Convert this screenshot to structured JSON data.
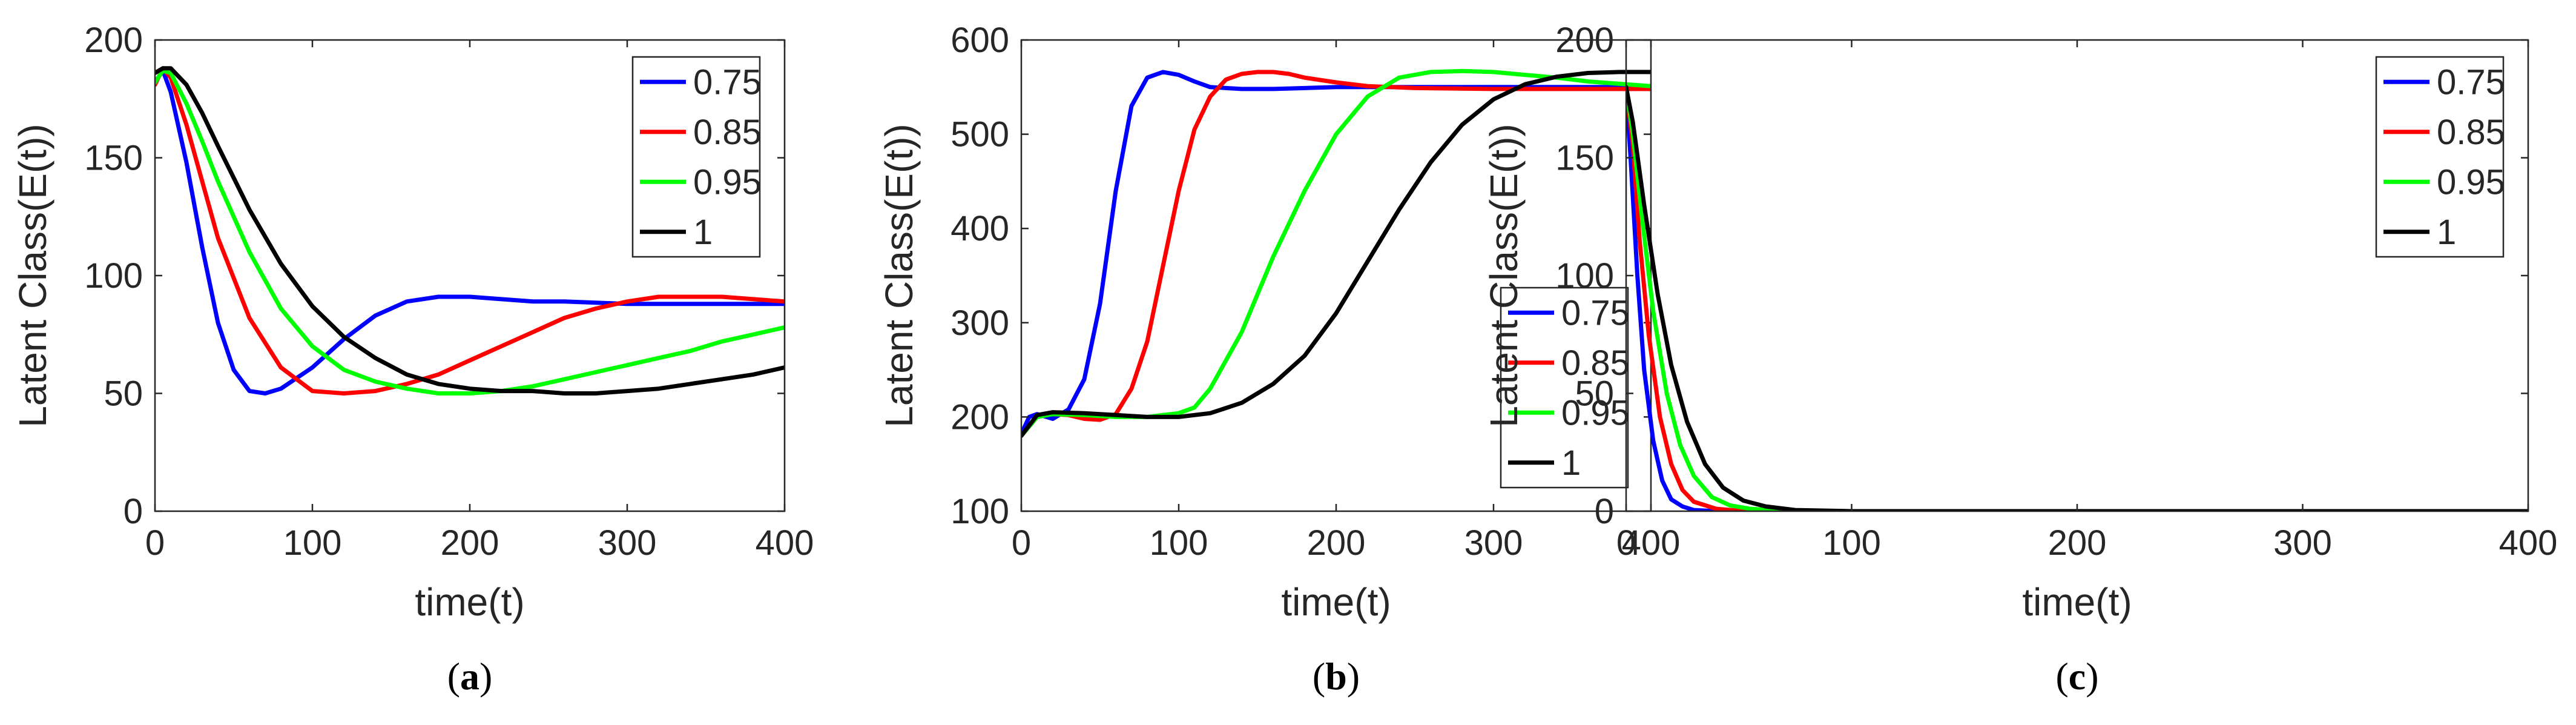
{
  "figure": {
    "axis_color": "#262626",
    "background": "#ffffff"
  },
  "chart_data": [
    {
      "type": "line",
      "panel_label": "(a)",
      "panel_letter": "a",
      "xlabel": "time(t)",
      "ylabel": "Latent Class(E(t))",
      "xlim": [
        0,
        400
      ],
      "ylim": [
        0,
        200
      ],
      "xticks": [
        0,
        100,
        200,
        300,
        400
      ],
      "yticks": [
        0,
        50,
        100,
        150,
        200
      ],
      "grid": false,
      "legend_position": "top-right",
      "series": [
        {
          "name": "0.75",
          "color": "#0000ff",
          "x": [
            0,
            5,
            10,
            20,
            30,
            40,
            50,
            60,
            70,
            80,
            100,
            120,
            140,
            160,
            180,
            200,
            220,
            240,
            260,
            300,
            350,
            400
          ],
          "y": [
            182,
            187,
            178,
            148,
            112,
            80,
            60,
            51,
            50,
            52,
            61,
            73,
            83,
            89,
            91,
            91,
            90,
            89,
            89,
            88,
            88,
            88
          ]
        },
        {
          "name": "0.85",
          "color": "#ff0000",
          "x": [
            0,
            5,
            10,
            20,
            30,
            40,
            60,
            80,
            100,
            120,
            140,
            160,
            180,
            200,
            220,
            240,
            260,
            280,
            300,
            320,
            340,
            360,
            380,
            400
          ],
          "y": [
            181,
            188,
            184,
            164,
            140,
            116,
            82,
            61,
            51,
            50,
            51,
            54,
            58,
            64,
            70,
            76,
            82,
            86,
            89,
            91,
            91,
            91,
            90,
            89
          ]
        },
        {
          "name": "0.95",
          "color": "#00ff00",
          "x": [
            0,
            5,
            10,
            20,
            30,
            40,
            60,
            80,
            100,
            120,
            140,
            160,
            180,
            200,
            220,
            240,
            260,
            280,
            300,
            320,
            340,
            360,
            380,
            400
          ],
          "y": [
            182,
            187,
            186,
            173,
            157,
            140,
            110,
            86,
            70,
            60,
            55,
            52,
            50,
            50,
            51,
            53,
            56,
            59,
            62,
            65,
            68,
            72,
            75,
            78
          ]
        },
        {
          "name": "1",
          "color": "#000000",
          "x": [
            0,
            5,
            10,
            20,
            30,
            40,
            60,
            80,
            100,
            120,
            140,
            160,
            180,
            200,
            220,
            240,
            260,
            280,
            300,
            320,
            340,
            360,
            380,
            400
          ],
          "y": [
            186,
            188,
            188,
            181,
            169,
            155,
            128,
            105,
            87,
            74,
            65,
            58,
            54,
            52,
            51,
            51,
            50,
            50,
            51,
            52,
            54,
            56,
            58,
            61
          ]
        }
      ]
    },
    {
      "type": "line",
      "panel_label": "(b)",
      "panel_letter": "b",
      "xlabel": "time(t)",
      "ylabel": "Latent Class(E(t))",
      "xlim": [
        0,
        400
      ],
      "ylim": [
        100,
        600
      ],
      "xticks": [
        0,
        100,
        200,
        300,
        400
      ],
      "yticks": [
        100,
        200,
        300,
        400,
        500,
        600
      ],
      "grid": false,
      "legend_position": "bottom-right",
      "series": [
        {
          "name": "0.75",
          "color": "#0000ff",
          "x": [
            0,
            5,
            10,
            20,
            30,
            40,
            50,
            60,
            70,
            80,
            90,
            100,
            110,
            120,
            140,
            160,
            200,
            250,
            300,
            400
          ],
          "y": [
            182,
            200,
            203,
            198,
            208,
            240,
            320,
            440,
            530,
            560,
            566,
            563,
            556,
            550,
            548,
            548,
            550,
            550,
            550,
            550
          ]
        },
        {
          "name": "0.85",
          "color": "#ff0000",
          "x": [
            0,
            10,
            20,
            30,
            40,
            50,
            60,
            70,
            80,
            90,
            100,
            110,
            120,
            130,
            140,
            150,
            160,
            170,
            180,
            200,
            220,
            250,
            300,
            400
          ],
          "y": [
            180,
            200,
            203,
            202,
            198,
            197,
            203,
            230,
            280,
            360,
            440,
            505,
            540,
            558,
            564,
            566,
            566,
            564,
            560,
            555,
            551,
            549,
            548,
            548
          ]
        },
        {
          "name": "0.95",
          "color": "#00ff00",
          "x": [
            0,
            10,
            20,
            40,
            60,
            80,
            100,
            110,
            120,
            140,
            160,
            180,
            200,
            220,
            240,
            260,
            280,
            300,
            320,
            340,
            360,
            400
          ],
          "y": [
            180,
            200,
            203,
            202,
            200,
            200,
            204,
            210,
            230,
            290,
            370,
            440,
            500,
            540,
            560,
            566,
            567,
            566,
            563,
            560,
            556,
            551
          ]
        },
        {
          "name": "1",
          "color": "#000000",
          "x": [
            0,
            10,
            20,
            40,
            60,
            80,
            100,
            120,
            140,
            160,
            180,
            200,
            220,
            240,
            260,
            280,
            300,
            320,
            340,
            360,
            380,
            400
          ],
          "y": [
            180,
            202,
            205,
            204,
            202,
            200,
            200,
            204,
            215,
            235,
            265,
            310,
            365,
            420,
            470,
            510,
            537,
            553,
            561,
            565,
            566,
            566
          ]
        }
      ]
    },
    {
      "type": "line",
      "panel_label": "(c)",
      "panel_letter": "c",
      "xlabel": "time(t)",
      "ylabel": "Latent Class(E(t))",
      "xlim": [
        0,
        400
      ],
      "ylim": [
        0,
        200
      ],
      "xticks": [
        0,
        100,
        200,
        300,
        400
      ],
      "yticks": [
        0,
        50,
        100,
        150,
        200
      ],
      "grid": false,
      "legend_position": "top-right",
      "series": [
        {
          "name": "0.75",
          "color": "#0000ff",
          "x": [
            0,
            2,
            5,
            8,
            12,
            16,
            20,
            25,
            30,
            40,
            60,
            100,
            200,
            400
          ],
          "y": [
            180,
            150,
            100,
            60,
            30,
            13,
            5,
            2,
            0.5,
            0,
            0,
            0,
            0,
            0
          ]
        },
        {
          "name": "0.85",
          "color": "#ff0000",
          "x": [
            0,
            3,
            6,
            10,
            15,
            20,
            25,
            30,
            40,
            50,
            70,
            100,
            200,
            400
          ],
          "y": [
            180,
            155,
            115,
            75,
            40,
            20,
            9,
            4,
            1,
            0.2,
            0,
            0,
            0,
            0
          ]
        },
        {
          "name": "0.95",
          "color": "#00ff00",
          "x": [
            0,
            3,
            7,
            12,
            18,
            24,
            30,
            38,
            46,
            55,
            70,
            100,
            200,
            400
          ],
          "y": [
            180,
            160,
            125,
            85,
            50,
            28,
            15,
            6,
            2.5,
            1,
            0.2,
            0,
            0,
            0
          ]
        },
        {
          "name": "1",
          "color": "#000000",
          "x": [
            0,
            3,
            8,
            14,
            20,
            27,
            35,
            43,
            52,
            62,
            75,
            100,
            200,
            400
          ],
          "y": [
            180,
            165,
            130,
            92,
            62,
            38,
            20,
            10,
            4.5,
            2,
            0.5,
            0,
            0,
            0
          ]
        }
      ]
    }
  ]
}
